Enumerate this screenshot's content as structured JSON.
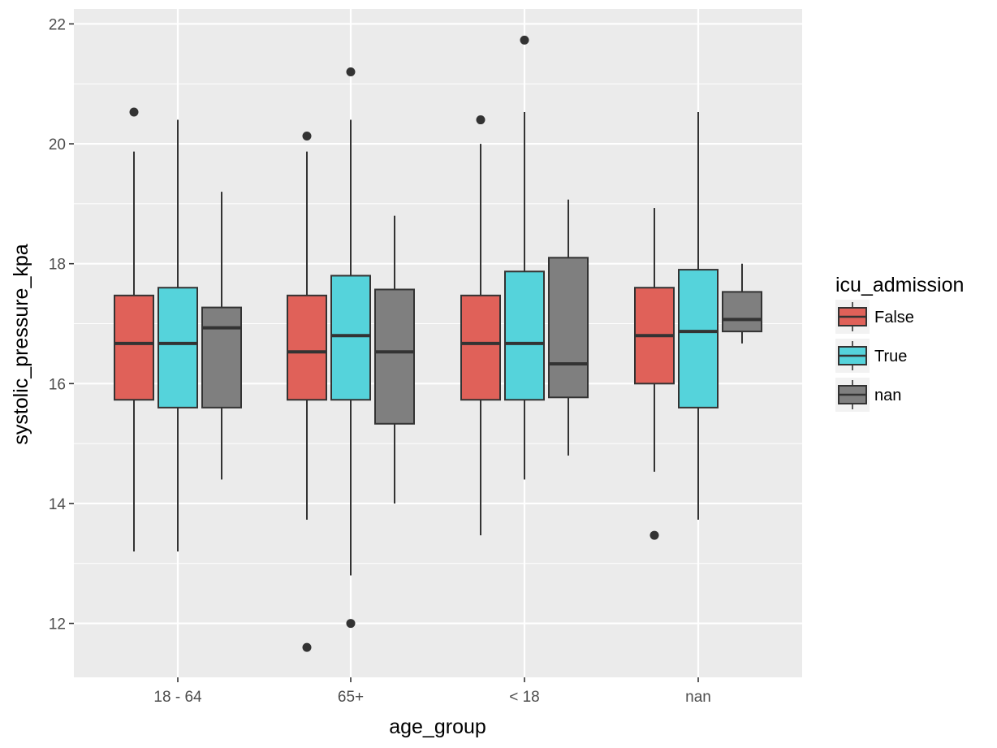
{
  "chart_data": {
    "type": "boxplot",
    "xlabel": "age_group",
    "ylabel": "systolic_pressure_kpa",
    "ylim": [
      11.1,
      22.25
    ],
    "y_ticks": [
      12,
      14,
      16,
      18,
      20,
      22
    ],
    "y_minor_ticks": [
      13,
      15,
      17,
      19,
      21
    ],
    "categories": [
      "18 - 64",
      "65+",
      "< 18",
      "nan"
    ],
    "grid": true,
    "legend": {
      "title": "icu_admission",
      "position": "right",
      "entries": [
        "False",
        "True",
        "nan"
      ]
    },
    "colors": {
      "False": "#e06159",
      "True": "#55d3db",
      "nan": "#7f7f7f",
      "panel": "#ebebeb",
      "grid": "#ffffff",
      "outline": "#333333"
    },
    "series": [
      {
        "name": "False",
        "boxes": [
          {
            "category": "18 - 64",
            "lower_whisker": 13.2,
            "q1": 15.73,
            "median": 16.67,
            "q3": 17.47,
            "upper_whisker": 19.87,
            "outliers": [
              20.53
            ]
          },
          {
            "category": "65+",
            "lower_whisker": 13.73,
            "q1": 15.73,
            "median": 16.53,
            "q3": 17.47,
            "upper_whisker": 19.87,
            "outliers": [
              20.13,
              11.6
            ]
          },
          {
            "category": "< 18",
            "lower_whisker": 13.47,
            "q1": 15.73,
            "median": 16.67,
            "q3": 17.47,
            "upper_whisker": 20.0,
            "outliers": [
              20.4
            ]
          },
          {
            "category": "nan",
            "lower_whisker": 14.53,
            "q1": 16.0,
            "median": 16.8,
            "q3": 17.6,
            "upper_whisker": 18.93,
            "outliers": [
              13.47
            ]
          }
        ]
      },
      {
        "name": "True",
        "boxes": [
          {
            "category": "18 - 64",
            "lower_whisker": 13.2,
            "q1": 15.6,
            "median": 16.67,
            "q3": 17.6,
            "upper_whisker": 20.4,
            "outliers": []
          },
          {
            "category": "65+",
            "lower_whisker": 12.8,
            "q1": 15.73,
            "median": 16.8,
            "q3": 17.8,
            "upper_whisker": 20.4,
            "outliers": [
              21.2,
              12.0
            ]
          },
          {
            "category": "< 18",
            "lower_whisker": 14.4,
            "q1": 15.73,
            "median": 16.67,
            "q3": 17.87,
            "upper_whisker": 20.53,
            "outliers": [
              21.73
            ]
          },
          {
            "category": "nan",
            "lower_whisker": 13.73,
            "q1": 15.6,
            "median": 16.87,
            "q3": 17.9,
            "upper_whisker": 20.53,
            "outliers": []
          }
        ]
      },
      {
        "name": "nan",
        "boxes": [
          {
            "category": "18 - 64",
            "lower_whisker": 14.4,
            "q1": 15.6,
            "median": 16.93,
            "q3": 17.27,
            "upper_whisker": 19.2,
            "outliers": []
          },
          {
            "category": "65+",
            "lower_whisker": 14.0,
            "q1": 15.33,
            "median": 16.53,
            "q3": 17.57,
            "upper_whisker": 18.8,
            "outliers": []
          },
          {
            "category": "< 18",
            "lower_whisker": 14.8,
            "q1": 15.77,
            "median": 16.33,
            "q3": 18.1,
            "upper_whisker": 19.07,
            "outliers": []
          },
          {
            "category": "nan",
            "lower_whisker": 16.67,
            "q1": 16.87,
            "median": 17.07,
            "q3": 17.53,
            "upper_whisker": 18.0,
            "outliers": []
          }
        ]
      }
    ]
  }
}
